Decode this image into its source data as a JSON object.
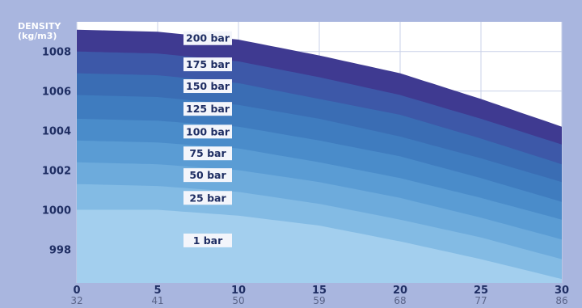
{
  "chart_data": {
    "type": "area",
    "ylabel_line1": "DENSITY",
    "ylabel_line2": "(kg/m3)",
    "x_ticks": [
      "0",
      "5",
      "10",
      "15",
      "20",
      "25",
      "30"
    ],
    "x_ticks_secondary": [
      "32",
      "41",
      "50",
      "59",
      "68",
      "77",
      "86"
    ],
    "y_ticks": [
      "998",
      "1000",
      "1002",
      "1004",
      "1006",
      "1008"
    ],
    "xlim": [
      0,
      30
    ],
    "ylim": [
      996.3,
      1009.5
    ],
    "x": [
      0,
      5,
      10,
      15,
      20,
      25,
      30
    ],
    "series": [
      {
        "name": "200 bar",
        "color": "#3f3a91",
        "values": [
          1009.1,
          1009.0,
          1008.6,
          1007.8,
          1006.9,
          1005.6,
          1004.2
        ]
      },
      {
        "name": "175 bar",
        "color": "#3d58a8",
        "values": [
          1008.0,
          1007.9,
          1007.5,
          1006.7,
          1005.8,
          1004.6,
          1003.3
        ]
      },
      {
        "name": "150 bar",
        "color": "#3a6db4",
        "values": [
          1006.9,
          1006.8,
          1006.4,
          1005.6,
          1004.8,
          1003.6,
          1002.3
        ]
      },
      {
        "name": "125 bar",
        "color": "#3f7cbf",
        "values": [
          1005.8,
          1005.7,
          1005.3,
          1004.6,
          1003.7,
          1002.6,
          1001.4
        ]
      },
      {
        "name": "100 bar",
        "color": "#4a8cca",
        "values": [
          1004.6,
          1004.5,
          1004.2,
          1003.5,
          1002.7,
          1001.6,
          1000.4
        ]
      },
      {
        "name": "75 bar",
        "color": "#5a9cd4",
        "values": [
          1003.5,
          1003.4,
          1003.1,
          1002.4,
          1001.6,
          1000.6,
          999.5
        ]
      },
      {
        "name": "50 bar",
        "color": "#6dabdc",
        "values": [
          1002.4,
          1002.3,
          1002.0,
          1001.4,
          1000.6,
          999.6,
          998.5
        ]
      },
      {
        "name": "25 bar",
        "color": "#83bbe4",
        "values": [
          1001.3,
          1001.2,
          1000.9,
          1000.3,
          999.5,
          998.6,
          997.5
        ]
      },
      {
        "name": "1 bar",
        "color": "#a3cfee",
        "values": [
          1000.0,
          1000.0,
          999.7,
          999.2,
          998.4,
          997.5,
          996.5
        ]
      }
    ],
    "grid": true,
    "colors": {
      "background": "#a9b6df",
      "plot": "#ffffff",
      "grid": "#c9d1e8",
      "label_box": "#f3f5fb"
    }
  }
}
